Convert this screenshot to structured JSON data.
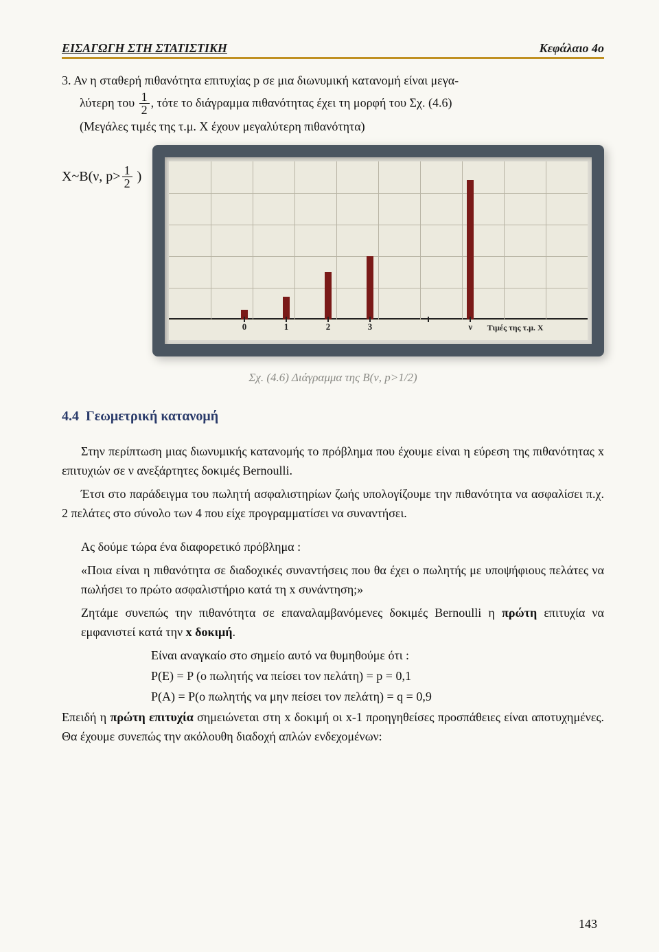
{
  "header": {
    "left": "ΕΙΣΑΓΩΓΗ ΣΤΗ ΣΤΑΤΙΣΤΙΚΗ",
    "right": "Κεφάλαιο 4ο"
  },
  "item3": {
    "lead": "3.  Αν η σταθερή πιθανότητα επιτυχίας p σε μια διωνυμική κατανομή είναι μεγα-",
    "cont1": "λύτερη του ",
    "frac_num": "1",
    "frac_den": "2",
    "cont2": ", τότε το διάγραμμα πιθανότητας έχει τη μορφή του Σχ. (4.6)",
    "line2": "(Μεγάλες τιμές της τ.μ. Χ έχουν μεγαλύτερη πιθανότητα)"
  },
  "chart_label": {
    "pre": "X~B(ν, p>",
    "frac_num": "1",
    "frac_den": "2",
    "post": " )"
  },
  "chart": {
    "bars": [
      {
        "x_pct": 18,
        "h_pct": 6,
        "label": "0"
      },
      {
        "x_pct": 28,
        "h_pct": 14,
        "label": "1"
      },
      {
        "x_pct": 38,
        "h_pct": 30,
        "label": "2"
      },
      {
        "x_pct": 48,
        "h_pct": 40,
        "label": "3"
      },
      {
        "x_pct": 72,
        "h_pct": 88,
        "label": "ν"
      }
    ],
    "blank_tick": {
      "x_pct": 62
    },
    "grid_rows": 5,
    "grid_cols": 10,
    "axis_caption_text": "Τιμές της τ.μ. Χ",
    "axis_caption_x_pct": 76
  },
  "fig_caption": "Σχ. (4.6)  Διάγραμμα της B(ν, p>1/2)",
  "section": {
    "num": "4.4",
    "title": "Γεωμετρική κατανομή"
  },
  "p1a": "Στην περίπτωση μιας διωνυμικής κατανομής το πρόβλημα που έχουμε είναι η εύρεση της πιθανότητας x επιτυχιών σε ν ανεξάρτητες δοκιμές Bernoulli.",
  "p1b": "Έτσι στο παράδειγμα του πωλητή ασφαλιστηρίων ζωής υπολογίζουμε την πιθανότητα να ασφαλίσει π.χ. 2 πελάτες στο σύνολο των 4 που είχε προγραμματίσει να συναντήσει.",
  "p2_intro": "Ας δούμε τώρα ένα διαφορετικό πρόβλημα :",
  "p2_quote": "«Ποια είναι η πιθανότητα σε διαδοχικές συναντήσεις που θα έχει ο πωλητής με υποψήφιους πελάτες να πωλήσει το πρώτο ασφαλιστήριο κατά τη x συνάντηση;»",
  "p2_a": "Ζητάμε συνεπώς την πιθανότητα σε επαναλαμβανόμενες δοκιμές Bernoulli η ",
  "p2_b_bold1": "πρώτη",
  "p2_c": " επιτυχία να εμφανιστεί κατά την ",
  "p2_b_bold2": "x δοκιμή",
  "p2_d": ".",
  "f_intro": "Είναι αναγκαίο στο σημείο αυτό να θυμηθούμε ότι :",
  "f1": "P(E) = P (ο πωλητής να πείσει τον πελάτη) = p = 0,1",
  "f2": "P(A) = P(ο πωλητής να  μην πείσει τον πελάτη) = q = 0,9",
  "p3_a": "Επειδή η ",
  "p3_bold": "πρώτη επιτυχία",
  "p3_b": " σημειώνεται στη x δοκιμή οι x-1 προηγηθείσες προσπάθειες είναι αποτυχημένες. Θα έχουμε συνεπώς την ακόλουθη διαδοχή απλών ενδεχομένων:",
  "page_number": "143"
}
